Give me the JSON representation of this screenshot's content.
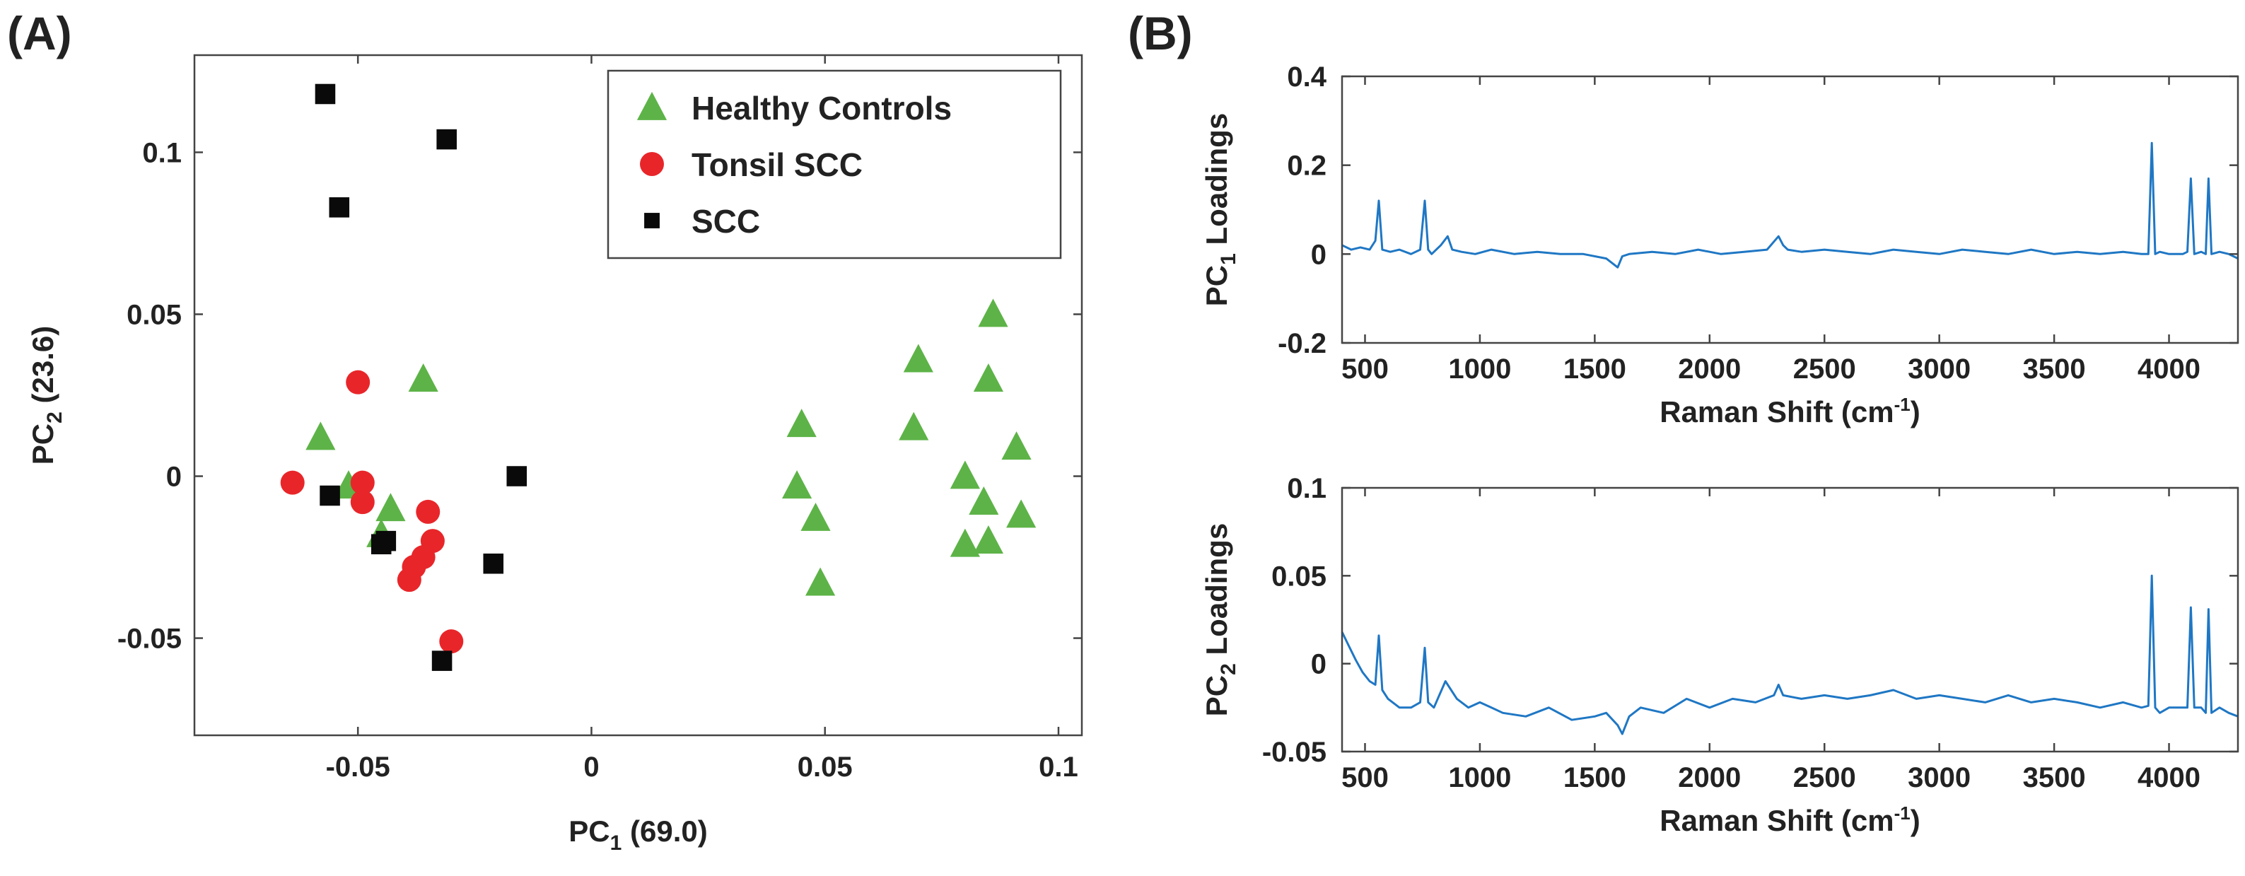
{
  "panels": {
    "a_label": "(A)",
    "b_label": "(B)"
  },
  "colors": {
    "healthy": "#5db347",
    "tonsil": "#e8262a",
    "scc": "#0a0a0a",
    "loading_line": "#1f77c4",
    "axis": "#444444"
  },
  "chart_data": [
    {
      "type": "scatter",
      "panel": "A",
      "title": "",
      "xlabel": {
        "prefix": "PC",
        "sub": "1",
        "suffix": " (69.0)"
      },
      "ylabel": {
        "prefix": "PC",
        "sub": "2",
        "suffix": " (23.6)"
      },
      "xlim": [
        -0.085,
        0.105
      ],
      "ylim": [
        -0.08,
        0.13
      ],
      "xticks": [
        -0.05,
        0,
        0.05,
        0.1
      ],
      "xtick_labels": [
        "-0.05",
        "0",
        "0.05",
        "0.1"
      ],
      "yticks": [
        -0.05,
        0,
        0.05,
        0.1
      ],
      "ytick_labels": [
        "-0.05",
        "0",
        "0.05",
        "0.1"
      ],
      "grid": false,
      "legend_position": "top-right",
      "series": [
        {
          "name": "Healthy Controls",
          "marker": "triangle",
          "points": [
            [
              -0.058,
              0.012
            ],
            [
              -0.052,
              -0.003
            ],
            [
              -0.036,
              0.03
            ],
            [
              -0.043,
              -0.01
            ],
            [
              -0.045,
              -0.018
            ],
            [
              0.045,
              0.016
            ],
            [
              0.044,
              -0.003
            ],
            [
              0.048,
              -0.013
            ],
            [
              0.049,
              -0.033
            ],
            [
              0.069,
              0.015
            ],
            [
              0.07,
              0.036
            ],
            [
              0.08,
              0.0
            ],
            [
              0.08,
              -0.021
            ],
            [
              0.084,
              -0.008
            ],
            [
              0.085,
              -0.02
            ],
            [
              0.085,
              0.03
            ],
            [
              0.086,
              0.05
            ],
            [
              0.091,
              0.009
            ],
            [
              0.092,
              -0.012
            ]
          ]
        },
        {
          "name": "Tonsil SCC",
          "marker": "circle",
          "points": [
            [
              -0.05,
              0.029
            ],
            [
              -0.064,
              -0.002
            ],
            [
              -0.049,
              -0.002
            ],
            [
              -0.049,
              -0.008
            ],
            [
              -0.035,
              -0.011
            ],
            [
              -0.034,
              -0.02
            ],
            [
              -0.036,
              -0.025
            ],
            [
              -0.038,
              -0.028
            ],
            [
              -0.039,
              -0.032
            ],
            [
              -0.03,
              -0.051
            ]
          ]
        },
        {
          "name": "SCC",
          "marker": "square",
          "points": [
            [
              -0.057,
              0.118
            ],
            [
              -0.031,
              0.104
            ],
            [
              -0.054,
              0.083
            ],
            [
              -0.056,
              -0.006
            ],
            [
              -0.016,
              0.0
            ],
            [
              -0.045,
              -0.021
            ],
            [
              -0.044,
              -0.02
            ],
            [
              -0.021,
              -0.027
            ],
            [
              -0.032,
              -0.057
            ]
          ]
        }
      ]
    },
    {
      "type": "line",
      "panel": "B-top",
      "title": "",
      "xlabel": {
        "text": "Raman Shift (cm",
        "sup": "-1",
        "suffix": ")"
      },
      "ylabel": {
        "prefix": "PC",
        "sub": "1",
        "suffix": " Loadings"
      },
      "xlim": [
        400,
        4300
      ],
      "ylim": [
        -0.2,
        0.4
      ],
      "xticks": [
        500,
        1000,
        1500,
        2000,
        2500,
        3000,
        3500,
        4000
      ],
      "xtick_labels": [
        "500",
        "1000",
        "1500",
        "2000",
        "2500",
        "3000",
        "3500",
        "4000"
      ],
      "yticks": [
        -0.2,
        0,
        0.2,
        0.4
      ],
      "ytick_labels": [
        "-0.2",
        "0",
        "0.2",
        "0.4"
      ],
      "grid": false,
      "series": [
        {
          "name": "PC1 loadings",
          "x": [
            400,
            440,
            480,
            520,
            545,
            560,
            575,
            610,
            650,
            700,
            740,
            760,
            775,
            790,
            830,
            860,
            880,
            920,
            980,
            1050,
            1150,
            1250,
            1350,
            1450,
            1550,
            1600,
            1620,
            1650,
            1750,
            1850,
            1950,
            2050,
            2150,
            2250,
            2300,
            2320,
            2340,
            2400,
            2500,
            2600,
            2700,
            2800,
            2900,
            3000,
            3100,
            3200,
            3300,
            3400,
            3500,
            3600,
            3700,
            3800,
            3880,
            3910,
            3925,
            3940,
            3960,
            4000,
            4060,
            4080,
            4095,
            4110,
            4140,
            4160,
            4172,
            4185,
            4220,
            4260,
            4300
          ],
          "y": [
            0.02,
            0.01,
            0.015,
            0.01,
            0.03,
            0.12,
            0.01,
            0.005,
            0.01,
            0.0,
            0.01,
            0.12,
            0.01,
            0.0,
            0.02,
            0.04,
            0.01,
            0.005,
            0.0,
            0.01,
            0.0,
            0.005,
            0.0,
            0.0,
            -0.01,
            -0.03,
            -0.005,
            0.0,
            0.005,
            0.0,
            0.01,
            0.0,
            0.005,
            0.01,
            0.04,
            0.02,
            0.01,
            0.005,
            0.01,
            0.005,
            0.0,
            0.01,
            0.005,
            0.0,
            0.01,
            0.005,
            0.0,
            0.01,
            0.0,
            0.005,
            0.0,
            0.005,
            0.0,
            0.0,
            0.25,
            0.0,
            0.005,
            0.0,
            0.0,
            0.005,
            0.17,
            0.0,
            0.005,
            0.0,
            0.17,
            0.0,
            0.005,
            0.0,
            -0.01
          ]
        }
      ]
    },
    {
      "type": "line",
      "panel": "B-bottom",
      "title": "",
      "xlabel": {
        "text": "Raman Shift (cm",
        "sup": "-1",
        "suffix": ")"
      },
      "ylabel": {
        "prefix": "PC",
        "sub": "2",
        "suffix": " Loadings"
      },
      "xlim": [
        400,
        4300
      ],
      "ylim": [
        -0.05,
        0.1
      ],
      "xticks": [
        500,
        1000,
        1500,
        2000,
        2500,
        3000,
        3500,
        4000
      ],
      "xtick_labels": [
        "500",
        "1000",
        "1500",
        "2000",
        "2500",
        "3000",
        "3500",
        "4000"
      ],
      "yticks": [
        -0.05,
        0,
        0.05,
        0.1
      ],
      "ytick_labels": [
        "-0.05",
        "0",
        "0.05",
        "0.1"
      ],
      "grid": false,
      "series": [
        {
          "name": "PC2 loadings",
          "x": [
            400,
            430,
            460,
            490,
            520,
            545,
            560,
            575,
            600,
            650,
            700,
            740,
            760,
            775,
            800,
            850,
            900,
            950,
            1000,
            1050,
            1100,
            1200,
            1300,
            1400,
            1500,
            1550,
            1600,
            1620,
            1650,
            1700,
            1800,
            1900,
            2000,
            2100,
            2200,
            2280,
            2300,
            2320,
            2400,
            2500,
            2600,
            2700,
            2800,
            2900,
            3000,
            3100,
            3200,
            3300,
            3400,
            3500,
            3600,
            3700,
            3800,
            3880,
            3910,
            3925,
            3940,
            3960,
            4000,
            4060,
            4080,
            4095,
            4110,
            4140,
            4160,
            4172,
            4185,
            4220,
            4260,
            4300
          ],
          "y": [
            0.018,
            0.01,
            0.002,
            -0.005,
            -0.01,
            -0.012,
            0.016,
            -0.015,
            -0.02,
            -0.025,
            -0.025,
            -0.022,
            0.009,
            -0.022,
            -0.025,
            -0.01,
            -0.02,
            -0.025,
            -0.022,
            -0.025,
            -0.028,
            -0.03,
            -0.025,
            -0.032,
            -0.03,
            -0.028,
            -0.035,
            -0.04,
            -0.03,
            -0.025,
            -0.028,
            -0.02,
            -0.025,
            -0.02,
            -0.022,
            -0.018,
            -0.012,
            -0.018,
            -0.02,
            -0.018,
            -0.02,
            -0.018,
            -0.015,
            -0.02,
            -0.018,
            -0.02,
            -0.022,
            -0.018,
            -0.022,
            -0.02,
            -0.022,
            -0.025,
            -0.022,
            -0.025,
            -0.024,
            0.05,
            -0.025,
            -0.028,
            -0.025,
            -0.025,
            -0.025,
            0.032,
            -0.025,
            -0.025,
            -0.028,
            0.031,
            -0.028,
            -0.025,
            -0.028,
            -0.03
          ]
        }
      ]
    }
  ]
}
